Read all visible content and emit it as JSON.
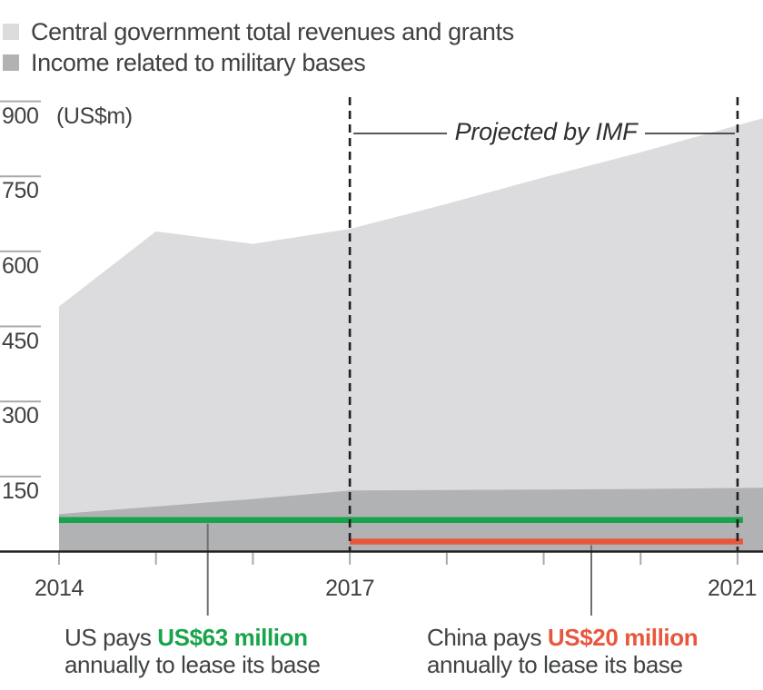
{
  "legend": {
    "items": [
      {
        "label": "Central government total revenues and grants",
        "color_key": "light_area"
      },
      {
        "label": "Income related to military bases",
        "color_key": "dark_area"
      }
    ]
  },
  "axis": {
    "unit_label": "(US$m)",
    "y_ticks": [
      900,
      750,
      600,
      450,
      300,
      150
    ],
    "x_tick_years": [
      2014,
      2017,
      2021
    ],
    "x_tick_labels": [
      "2014",
      "2017",
      "2021"
    ]
  },
  "projection": {
    "label": "Projected by IMF",
    "start_year": 2017,
    "end_year": 2021
  },
  "annotations": {
    "us": {
      "prefix": "US pays ",
      "amount": "US$63 million",
      "line2": "annually to lease its base"
    },
    "china": {
      "prefix": "China pays ",
      "amount": "US$20 million",
      "line2": "annually to lease its base"
    }
  },
  "colors": {
    "light_area": "#dcdcde",
    "dark_area": "#b1b2b4",
    "us_green": "#17a44a",
    "china_red": "#e8573d",
    "axis_black": "#231f20",
    "tick_gray": "#a7a9ac",
    "leader_gray": "#6d6f72",
    "text_dark": "#3f4143"
  },
  "chart_data": {
    "type": "area",
    "x": [
      2014,
      2015,
      2016,
      2017,
      2018,
      2019,
      2020,
      2021
    ],
    "series": [
      {
        "name": "Central government total revenues and grants",
        "kind": "area",
        "color_key": "light_area",
        "values": [
          490,
          640,
          615,
          645,
          695,
          748,
          798,
          852
        ]
      },
      {
        "name": "Income related to military bases",
        "kind": "area",
        "color_key": "dark_area",
        "values": [
          75,
          90,
          105,
          122,
          123,
          124,
          125,
          127
        ]
      },
      {
        "name": "US annual lease payment",
        "kind": "line",
        "color_key": "us_green",
        "values": [
          63,
          63,
          63,
          63,
          63,
          63,
          63,
          63
        ]
      },
      {
        "name": "China annual lease payment",
        "kind": "line",
        "color_key": "china_red",
        "values": [
          null,
          null,
          null,
          20,
          20,
          20,
          20,
          20
        ]
      }
    ],
    "title": "",
    "xlabel": "",
    "ylabel": "(US$m)",
    "ylim": [
      0,
      900
    ],
    "x_range": [
      2014,
      2021
    ],
    "grid": false,
    "legend_position": "top-left",
    "annotations": [
      "Projected by IMF",
      "US pays US$63 million annually to lease its base",
      "China pays US$20 million annually to lease its base"
    ]
  }
}
